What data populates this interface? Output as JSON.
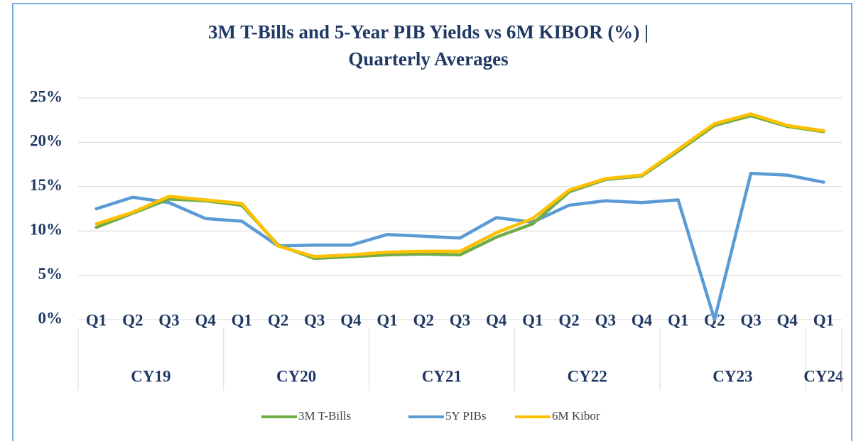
{
  "chart_data": {
    "type": "line",
    "title": [
      "3M T-Bills and 5-Year PIB Yields vs 6M KIBOR (%) |",
      "Quarterly Averages"
    ],
    "groups": [
      {
        "name": "CY19",
        "categories": [
          "Q1",
          "Q2",
          "Q3",
          "Q4"
        ]
      },
      {
        "name": "CY20",
        "categories": [
          "Q1",
          "Q2",
          "Q3",
          "Q4"
        ]
      },
      {
        "name": "CY21",
        "categories": [
          "Q1",
          "Q2",
          "Q3",
          "Q4"
        ]
      },
      {
        "name": "CY22",
        "categories": [
          "Q1",
          "Q2",
          "Q3",
          "Q4"
        ]
      },
      {
        "name": "CY23",
        "categories": [
          "Q1",
          "Q2",
          "Q3",
          "Q4"
        ]
      },
      {
        "name": "CY24",
        "categories": [
          "Q1"
        ]
      }
    ],
    "series": [
      {
        "name": "3M T-Bills",
        "color": "#70ad47",
        "values": [
          10.4,
          12.0,
          13.6,
          13.4,
          12.9,
          8.4,
          6.9,
          7.1,
          7.3,
          7.4,
          7.3,
          9.3,
          10.8,
          14.4,
          15.8,
          16.2,
          19.0,
          21.9,
          23.0,
          21.8,
          21.2
        ]
      },
      {
        "name": "5Y PIBs",
        "color": "#5b9bd5",
        "values": [
          12.5,
          13.8,
          13.2,
          11.4,
          11.1,
          8.3,
          8.4,
          8.4,
          9.6,
          9.4,
          9.2,
          11.5,
          11.0,
          12.9,
          13.4,
          13.2,
          13.5,
          0,
          16.5,
          16.3,
          15.5
        ]
      },
      {
        "name": "6M Kibor",
        "color": "#ffc000",
        "values": [
          10.8,
          12.1,
          13.9,
          13.5,
          13.1,
          8.3,
          7.1,
          7.3,
          7.6,
          7.7,
          7.7,
          9.8,
          11.4,
          14.6,
          15.9,
          16.3,
          19.2,
          22.1,
          23.2,
          21.9,
          21.3
        ]
      }
    ],
    "ylim": [
      0,
      25
    ],
    "yticks": [
      {
        "value": 0,
        "label": "0%"
      },
      {
        "value": 5,
        "label": "5%"
      },
      {
        "value": 10,
        "label": "10%"
      },
      {
        "value": 15,
        "label": "15%"
      },
      {
        "value": 20,
        "label": "20%"
      },
      {
        "value": 25,
        "label": "25%"
      }
    ],
    "grid": true,
    "legend": "bottom"
  }
}
